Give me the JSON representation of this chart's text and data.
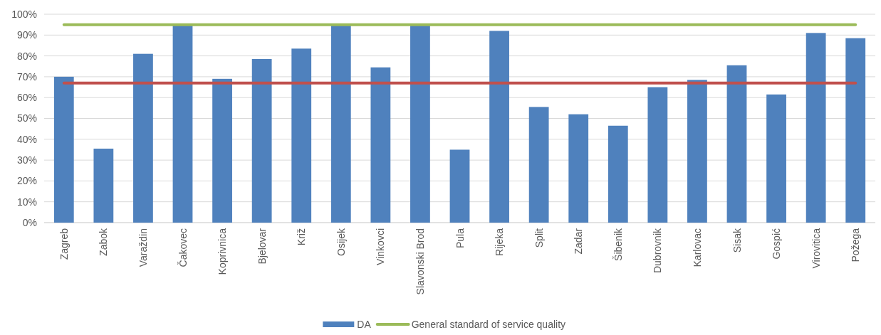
{
  "chart_data": {
    "type": "bar",
    "categories": [
      "Zagreb",
      "Zabok",
      "Varaždin",
      "Čakovec",
      "Koprivnica",
      "Bjelovar",
      "Križ",
      "Osijek",
      "Vinkovci",
      "Slavonski Brod",
      "Pula",
      "Rijeka",
      "Split",
      "Zadar",
      "Šibenik",
      "Dubrovnik",
      "Karlovac",
      "Sisak",
      "Gospić",
      "Virovitica",
      "Požega"
    ],
    "series": [
      {
        "name": "DA",
        "color": "#4f81bd",
        "values": [
          70,
          35.5,
          81,
          95,
          69,
          78.5,
          83.5,
          95,
          74.5,
          95,
          35,
          92,
          55.5,
          52,
          46.5,
          65,
          68.5,
          75.5,
          61.5,
          91,
          88.5
        ]
      },
      {
        "type": "line",
        "color": "#c0504d",
        "values": [
          67,
          67,
          67,
          67,
          67,
          67,
          67,
          67,
          67,
          67,
          67,
          67,
          67,
          67,
          67,
          67,
          67,
          67,
          67,
          67,
          67
        ]
      },
      {
        "name": "General standard of service quality",
        "type": "line",
        "color": "#9bbb59",
        "values": [
          95,
          95,
          95,
          95,
          95,
          95,
          95,
          95,
          95,
          95,
          95,
          95,
          95,
          95,
          95,
          95,
          95,
          95,
          95,
          95,
          95
        ]
      }
    ],
    "ylim": [
      0,
      100
    ],
    "yticks": [
      {
        "value": 0,
        "label": "0%"
      },
      {
        "value": 10,
        "label": "10%"
      },
      {
        "value": 20,
        "label": "20%"
      },
      {
        "value": 30,
        "label": "30%"
      },
      {
        "value": 40,
        "label": "40%"
      },
      {
        "value": 50,
        "label": "50%"
      },
      {
        "value": 60,
        "label": "60%"
      },
      {
        "value": 70,
        "label": "70%"
      },
      {
        "value": 80,
        "label": "80%"
      },
      {
        "value": 90,
        "label": "90%"
      },
      {
        "value": 100,
        "label": "100%"
      }
    ],
    "grid": "y",
    "legend": "bottom"
  }
}
